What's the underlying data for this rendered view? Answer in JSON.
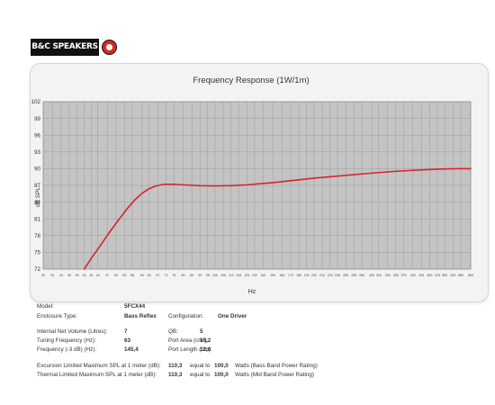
{
  "brand": {
    "logo_text": "B&C SPEAKERS"
  },
  "chart_data": {
    "type": "line",
    "title": "Frequency Response (1W/1m)",
    "xlabel": "Hz",
    "ylabel": "dB SPL",
    "ylim": [
      72,
      102
    ],
    "yticks": [
      72,
      75,
      78,
      81,
      84,
      87,
      90,
      93,
      96,
      99,
      102
    ],
    "xlim": [
      30,
      600
    ],
    "xscale": "log",
    "xticks": [
      30,
      32,
      34,
      36,
      38,
      40,
      42,
      44,
      47,
      50,
      53,
      56,
      60,
      63,
      67,
      71,
      75,
      80,
      85,
      90,
      95,
      100,
      106,
      112,
      118,
      125,
      132,
      140,
      150,
      160,
      170,
      180,
      190,
      200,
      212,
      224,
      236,
      250,
      265,
      280,
      300,
      315,
      335,
      355,
      375,
      400,
      425,
      450,
      475,
      500,
      530,
      560,
      600
    ],
    "grid": true,
    "series": [
      {
        "color": "#d8232a",
        "x": [
          40,
          42,
          45,
          48,
          51,
          54,
          57,
          60,
          63,
          66,
          70,
          75,
          80,
          90,
          100,
          112,
          125,
          150,
          180,
          200,
          250,
          300,
          350,
          400,
          450,
          500,
          560,
          600
        ],
        "y": [
          72,
          73.9,
          76.4,
          78.8,
          80.9,
          82.8,
          84.4,
          85.6,
          86.4,
          86.9,
          87.2,
          87.2,
          87.1,
          86.95,
          86.9,
          86.95,
          87.1,
          87.5,
          88.0,
          88.3,
          88.8,
          89.2,
          89.5,
          89.7,
          89.85,
          89.95,
          90.0,
          90.0
        ]
      }
    ]
  },
  "specs": {
    "model_label": "Model:",
    "model_value": "5FCX44",
    "enclosure_label": "Enclosure Type:",
    "enclosure_value": "Bass Reflex",
    "config_label": "Configuration:",
    "config_value": "One Driver",
    "volume_label": "Internal  Net Volume (Litres):",
    "volume_value": "7",
    "qb_label": "QB:",
    "qb_value": "5",
    "tuning_label": "Tuning Frequency (Hz):",
    "tuning_value": "63",
    "port_area_label": "Port Area (cm²):",
    "port_area_value": "15,2",
    "freq3_label": "Frequency (-3 dB) (Hz):",
    "freq3_value": "145,4",
    "port_length_label": "Port Length (cm):",
    "port_length_value": "12,6",
    "excursion_label": "Excursion Limited Maximum SPL at 1 meter (dB):",
    "excursion_value": "110,3",
    "excursion_equal": "equal to",
    "excursion_watts": "100,0",
    "excursion_note": "Watts (Bass Band Power Rating)",
    "thermal_label": "Thermal Limited Maximum SPL at 1 meter (dB):",
    "thermal_value": "110,3",
    "thermal_equal": "equal to",
    "thermal_watts": "100,0",
    "thermal_note": "Watts (Mid Band Power Rating)"
  }
}
